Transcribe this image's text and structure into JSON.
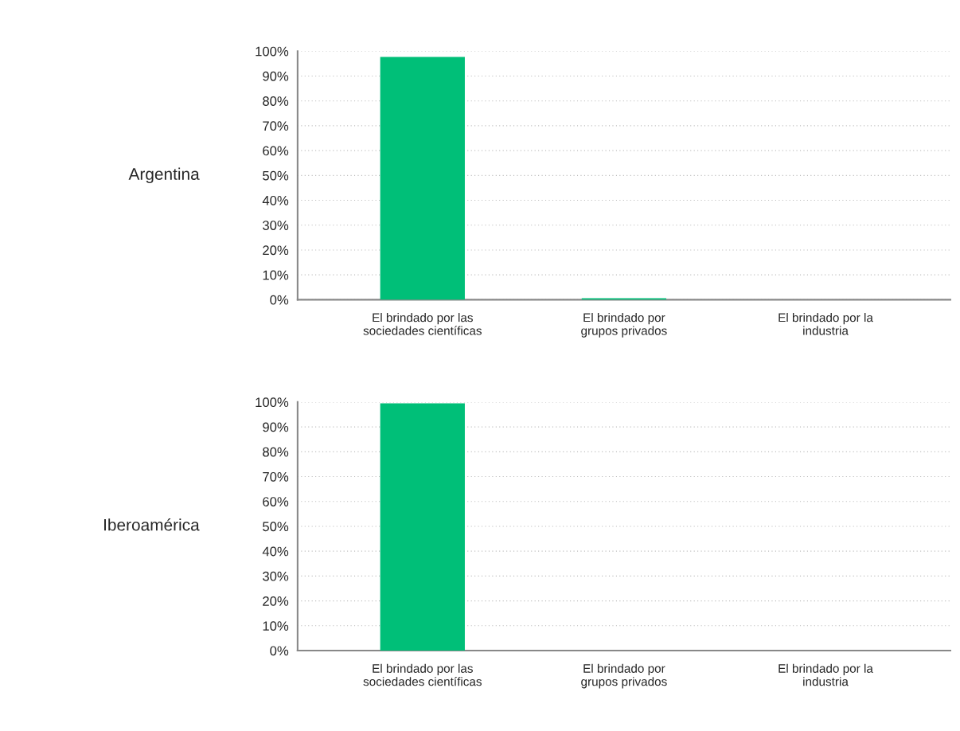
{
  "chart_data": [
    {
      "type": "bar",
      "ylabel": "Argentina",
      "categories": [
        "El brindado por las\nsociedades científicas",
        "El brindado por\ngrupos privados",
        "El brindado por la\nindustria"
      ],
      "values": [
        97.7,
        0.6,
        0
      ],
      "color": "#00bf78",
      "ylim": [
        0,
        100
      ],
      "yticks": [
        {
          "value": 0,
          "label": "0%"
        },
        {
          "value": 10,
          "label": "10%"
        },
        {
          "value": 20,
          "label": "20%"
        },
        {
          "value": 30,
          "label": "30%"
        },
        {
          "value": 40,
          "label": "40%"
        },
        {
          "value": 50,
          "label": "50%"
        },
        {
          "value": 60,
          "label": "60%"
        },
        {
          "value": 70,
          "label": "70%"
        },
        {
          "value": 80,
          "label": "80%"
        },
        {
          "value": 90,
          "label": "90%"
        },
        {
          "value": 100,
          "label": "100%"
        }
      ],
      "grid": "y"
    },
    {
      "type": "bar",
      "ylabel": "Iberoamérica",
      "categories": [
        "El brindado por las\nsociedades científicas",
        "El brindado por\ngrupos privados",
        "El brindado por la\nindustria"
      ],
      "values": [
        99.5,
        0,
        0
      ],
      "color": "#00bf78",
      "ylim": [
        0,
        100
      ],
      "yticks": [
        {
          "value": 0,
          "label": "0%"
        },
        {
          "value": 10,
          "label": "10%"
        },
        {
          "value": 20,
          "label": "20%"
        },
        {
          "value": 30,
          "label": "30%"
        },
        {
          "value": 40,
          "label": "40%"
        },
        {
          "value": 50,
          "label": "50%"
        },
        {
          "value": 60,
          "label": "60%"
        },
        {
          "value": 70,
          "label": "70%"
        },
        {
          "value": 80,
          "label": "80%"
        },
        {
          "value": 90,
          "label": "90%"
        },
        {
          "value": 100,
          "label": "100%"
        }
      ],
      "grid": "y"
    }
  ]
}
